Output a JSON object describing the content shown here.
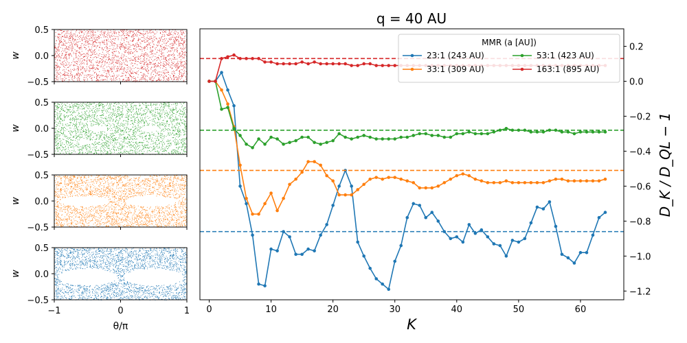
{
  "main_chart": {
    "title": "q = 40 AU",
    "xlabel": "K",
    "ylabel": "D_K / D_QL − 1",
    "xticks": [
      0,
      10,
      20,
      30,
      40,
      50,
      60
    ],
    "yticks": [
      -1.2,
      -1.0,
      -0.8,
      -0.6,
      -0.4,
      -0.2,
      0.0,
      0.2
    ],
    "legend_title": "MMR (a [AU])",
    "legend_entries": [
      "23:1 (243 AU)",
      "33:1 (309 AU)",
      "53:1 (423 AU)",
      "163:1 (895 AU)"
    ]
  },
  "side_panels": {
    "ylabel": "w",
    "xlabel": "θ/π",
    "xticks": [
      "−1",
      "0",
      "1"
    ],
    "yticks": [
      "0.5",
      "0.0",
      "−0.5"
    ]
  },
  "chart_data": [
    {
      "type": "line",
      "title": "q = 40 AU",
      "xlabel": "K",
      "ylabel": "D_K / D_QL − 1",
      "xlim": [
        -1.5,
        67
      ],
      "ylim": [
        -1.25,
        0.3
      ],
      "grid": false,
      "legend": "top-right",
      "series": [
        {
          "name": "23:1 (243 AU)",
          "color": "#1f77b4",
          "reference_line": -0.86,
          "x": [
            0,
            1,
            2,
            3,
            4,
            5,
            6,
            7,
            8,
            9,
            10,
            11,
            12,
            13,
            14,
            15,
            16,
            17,
            18,
            19,
            20,
            21,
            22,
            23,
            24,
            25,
            26,
            27,
            28,
            29,
            30,
            31,
            32,
            33,
            34,
            35,
            36,
            37,
            38,
            39,
            40,
            41,
            42,
            43,
            44,
            45,
            46,
            47,
            48,
            49,
            50,
            51,
            52,
            53,
            54,
            55,
            56,
            57,
            58,
            59,
            60,
            61,
            62,
            63,
            64
          ],
          "values": [
            0.0,
            0.0,
            0.05,
            -0.05,
            -0.14,
            -0.6,
            -0.7,
            -0.88,
            -1.16,
            -1.17,
            -0.96,
            -0.97,
            -0.86,
            -0.89,
            -0.99,
            -0.99,
            -0.96,
            -0.97,
            -0.88,
            -0.82,
            -0.71,
            -0.6,
            -0.51,
            -0.6,
            -0.92,
            -1.0,
            -1.07,
            -1.13,
            -1.16,
            -1.19,
            -1.03,
            -0.94,
            -0.78,
            -0.7,
            -0.71,
            -0.78,
            -0.75,
            -0.8,
            -0.86,
            -0.9,
            -0.89,
            -0.92,
            -0.82,
            -0.87,
            -0.85,
            -0.89,
            -0.93,
            -0.94,
            -1.0,
            -0.91,
            -0.92,
            -0.9,
            -0.81,
            -0.72,
            -0.73,
            -0.69,
            -0.83,
            -0.99,
            -1.01,
            -1.04,
            -0.98,
            -0.98,
            -0.88,
            -0.78,
            -0.75
          ]
        },
        {
          "name": "33:1 (309 AU)",
          "color": "#ff7f0e",
          "reference_line": -0.51,
          "x": [
            0,
            1,
            2,
            3,
            4,
            5,
            6,
            7,
            8,
            9,
            10,
            11,
            12,
            13,
            14,
            15,
            16,
            17,
            18,
            19,
            20,
            21,
            22,
            23,
            24,
            25,
            26,
            27,
            28,
            29,
            30,
            31,
            32,
            33,
            34,
            35,
            36,
            37,
            38,
            39,
            40,
            41,
            42,
            43,
            44,
            45,
            46,
            47,
            48,
            49,
            50,
            51,
            52,
            53,
            54,
            55,
            56,
            57,
            58,
            59,
            60,
            61,
            62,
            63,
            64
          ],
          "values": [
            0.0,
            0.0,
            -0.05,
            -0.13,
            -0.26,
            -0.48,
            -0.67,
            -0.76,
            -0.76,
            -0.7,
            -0.64,
            -0.74,
            -0.67,
            -0.59,
            -0.56,
            -0.52,
            -0.46,
            -0.46,
            -0.48,
            -0.54,
            -0.57,
            -0.65,
            -0.65,
            -0.65,
            -0.62,
            -0.59,
            -0.56,
            -0.55,
            -0.56,
            -0.55,
            -0.55,
            -0.56,
            -0.57,
            -0.58,
            -0.61,
            -0.61,
            -0.61,
            -0.6,
            -0.58,
            -0.56,
            -0.54,
            -0.53,
            -0.54,
            -0.56,
            -0.57,
            -0.58,
            -0.58,
            -0.58,
            -0.57,
            -0.58,
            -0.58,
            -0.58,
            -0.58,
            -0.58,
            -0.58,
            -0.57,
            -0.56,
            -0.56,
            -0.57,
            -0.57,
            -0.57,
            -0.57,
            -0.57,
            -0.57,
            -0.56
          ]
        },
        {
          "name": "53:1 (423 AU)",
          "color": "#2ca02c",
          "reference_line": -0.28,
          "x": [
            0,
            1,
            2,
            3,
            4,
            5,
            6,
            7,
            8,
            9,
            10,
            11,
            12,
            13,
            14,
            15,
            16,
            17,
            18,
            19,
            20,
            21,
            22,
            23,
            24,
            25,
            26,
            27,
            28,
            29,
            30,
            31,
            32,
            33,
            34,
            35,
            36,
            37,
            38,
            39,
            40,
            41,
            42,
            43,
            44,
            45,
            46,
            47,
            48,
            49,
            50,
            51,
            52,
            53,
            54,
            55,
            56,
            57,
            58,
            59,
            60,
            61,
            62,
            63,
            64
          ],
          "values": [
            0.0,
            0.0,
            -0.16,
            -0.15,
            -0.27,
            -0.31,
            -0.36,
            -0.38,
            -0.33,
            -0.36,
            -0.32,
            -0.33,
            -0.36,
            -0.35,
            -0.34,
            -0.32,
            -0.32,
            -0.35,
            -0.36,
            -0.35,
            -0.34,
            -0.3,
            -0.32,
            -0.33,
            -0.32,
            -0.31,
            -0.32,
            -0.33,
            -0.33,
            -0.33,
            -0.33,
            -0.32,
            -0.32,
            -0.31,
            -0.3,
            -0.3,
            -0.31,
            -0.31,
            -0.32,
            -0.32,
            -0.3,
            -0.3,
            -0.29,
            -0.3,
            -0.3,
            -0.3,
            -0.29,
            -0.28,
            -0.27,
            -0.28,
            -0.28,
            -0.28,
            -0.29,
            -0.29,
            -0.29,
            -0.28,
            -0.28,
            -0.29,
            -0.29,
            -0.3,
            -0.29,
            -0.29,
            -0.29,
            -0.29,
            -0.29
          ]
        },
        {
          "name": "163:1 (895 AU)",
          "color": "#d62728",
          "reference_line": 0.13,
          "x": [
            0,
            1,
            2,
            3,
            4,
            5,
            6,
            7,
            8,
            9,
            10,
            11,
            12,
            13,
            14,
            15,
            16,
            17,
            18,
            19,
            20,
            21,
            22,
            23,
            24,
            25,
            26,
            27,
            28,
            29,
            30,
            31,
            32,
            33,
            34,
            35,
            36,
            37,
            38,
            39,
            40,
            41,
            42,
            43,
            44,
            45,
            46,
            47,
            48,
            49,
            50,
            51,
            52,
            53,
            54,
            55,
            56,
            57,
            58,
            59,
            60,
            61,
            62,
            63,
            64
          ],
          "values": [
            0.0,
            0.0,
            0.13,
            0.14,
            0.15,
            0.13,
            0.13,
            0.13,
            0.13,
            0.11,
            0.11,
            0.1,
            0.1,
            0.1,
            0.1,
            0.11,
            0.1,
            0.11,
            0.1,
            0.1,
            0.1,
            0.1,
            0.1,
            0.09,
            0.09,
            0.1,
            0.1,
            0.09,
            0.09,
            0.09,
            0.09,
            0.09,
            0.09,
            0.09,
            0.09,
            0.09,
            0.09,
            0.09,
            0.09,
            0.09,
            0.09,
            0.09,
            0.09,
            0.09,
            0.09,
            0.09,
            0.09,
            0.09,
            0.09,
            0.09,
            0.09,
            0.09,
            0.09,
            0.09,
            0.09,
            0.09,
            0.09,
            0.09,
            0.09,
            0.09,
            0.09,
            0.09,
            0.09,
            0.09,
            0.09
          ]
        }
      ]
    },
    {
      "type": "scatter",
      "panels": [
        {
          "color": "#d62728",
          "xlim": [
            -1,
            1
          ],
          "ylim": [
            -0.5,
            0.5
          ],
          "islands": []
        },
        {
          "color": "#2ca02c",
          "xlim": [
            -1,
            1
          ],
          "ylim": [
            -0.5,
            0.5
          ],
          "islands": [
            [
              -0.35,
              0.0,
              0.14,
              0.06
            ],
            [
              0.45,
              0.0,
              0.14,
              0.06
            ],
            [
              -0.55,
              -0.25,
              0.1,
              0.05
            ]
          ]
        },
        {
          "color": "#ff7f0e",
          "xlim": [
            -1,
            1
          ],
          "ylim": [
            -0.5,
            0.5
          ],
          "islands": [
            [
              -0.55,
              0.0,
              0.38,
              0.1
            ],
            [
              0.45,
              0.0,
              0.38,
              0.1
            ]
          ]
        },
        {
          "color": "#1f77b4",
          "xlim": [
            -1,
            1
          ],
          "ylim": [
            -0.5,
            0.5
          ],
          "islands": [
            [
              -0.5,
              -0.06,
              0.45,
              0.16
            ],
            [
              0.5,
              -0.06,
              0.45,
              0.16
            ]
          ]
        }
      ]
    }
  ]
}
